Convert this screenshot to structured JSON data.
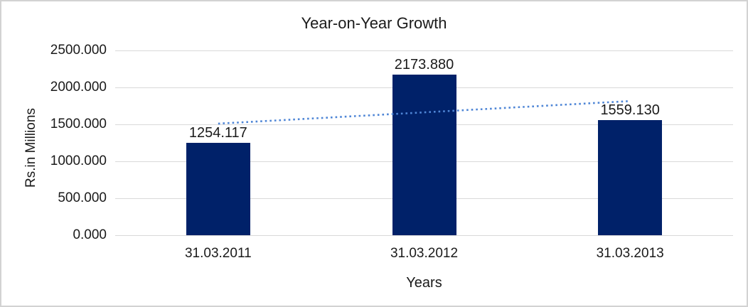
{
  "window": {
    "background": "#ffffff",
    "border_color": "#d2d2d2"
  },
  "chart_data": {
    "type": "bar",
    "title": "Year-on-Year Growth",
    "xlabel": "Years",
    "ylabel": "Rs.in Millions",
    "categories": [
      "31.03.2011",
      "31.03.2012",
      "31.03.2013"
    ],
    "values": [
      1254.117,
      2173.88,
      1559.13
    ],
    "data_labels": [
      "1254.117",
      "2173.880",
      "1559.130"
    ],
    "ylim": [
      0,
      2500
    ],
    "y_ticks": [
      {
        "value": 2500,
        "label": "2500.000"
      },
      {
        "value": 2000,
        "label": "2000.000"
      },
      {
        "value": 1500,
        "label": "1500.000"
      },
      {
        "value": 1000,
        "label": "1000.000"
      },
      {
        "value": 500,
        "label": "500.000"
      },
      {
        "value": 0,
        "label": "0.000"
      }
    ],
    "grid": "horizontal",
    "legend": "none",
    "colors": {
      "bar": "#002169",
      "trendline": "#4f86d6",
      "gridline": "#d9d9d9",
      "text": "#1a1a1a"
    },
    "trendline": {
      "type": "linear",
      "style": "dotted",
      "start_value": 1510,
      "end_value": 1815
    }
  }
}
